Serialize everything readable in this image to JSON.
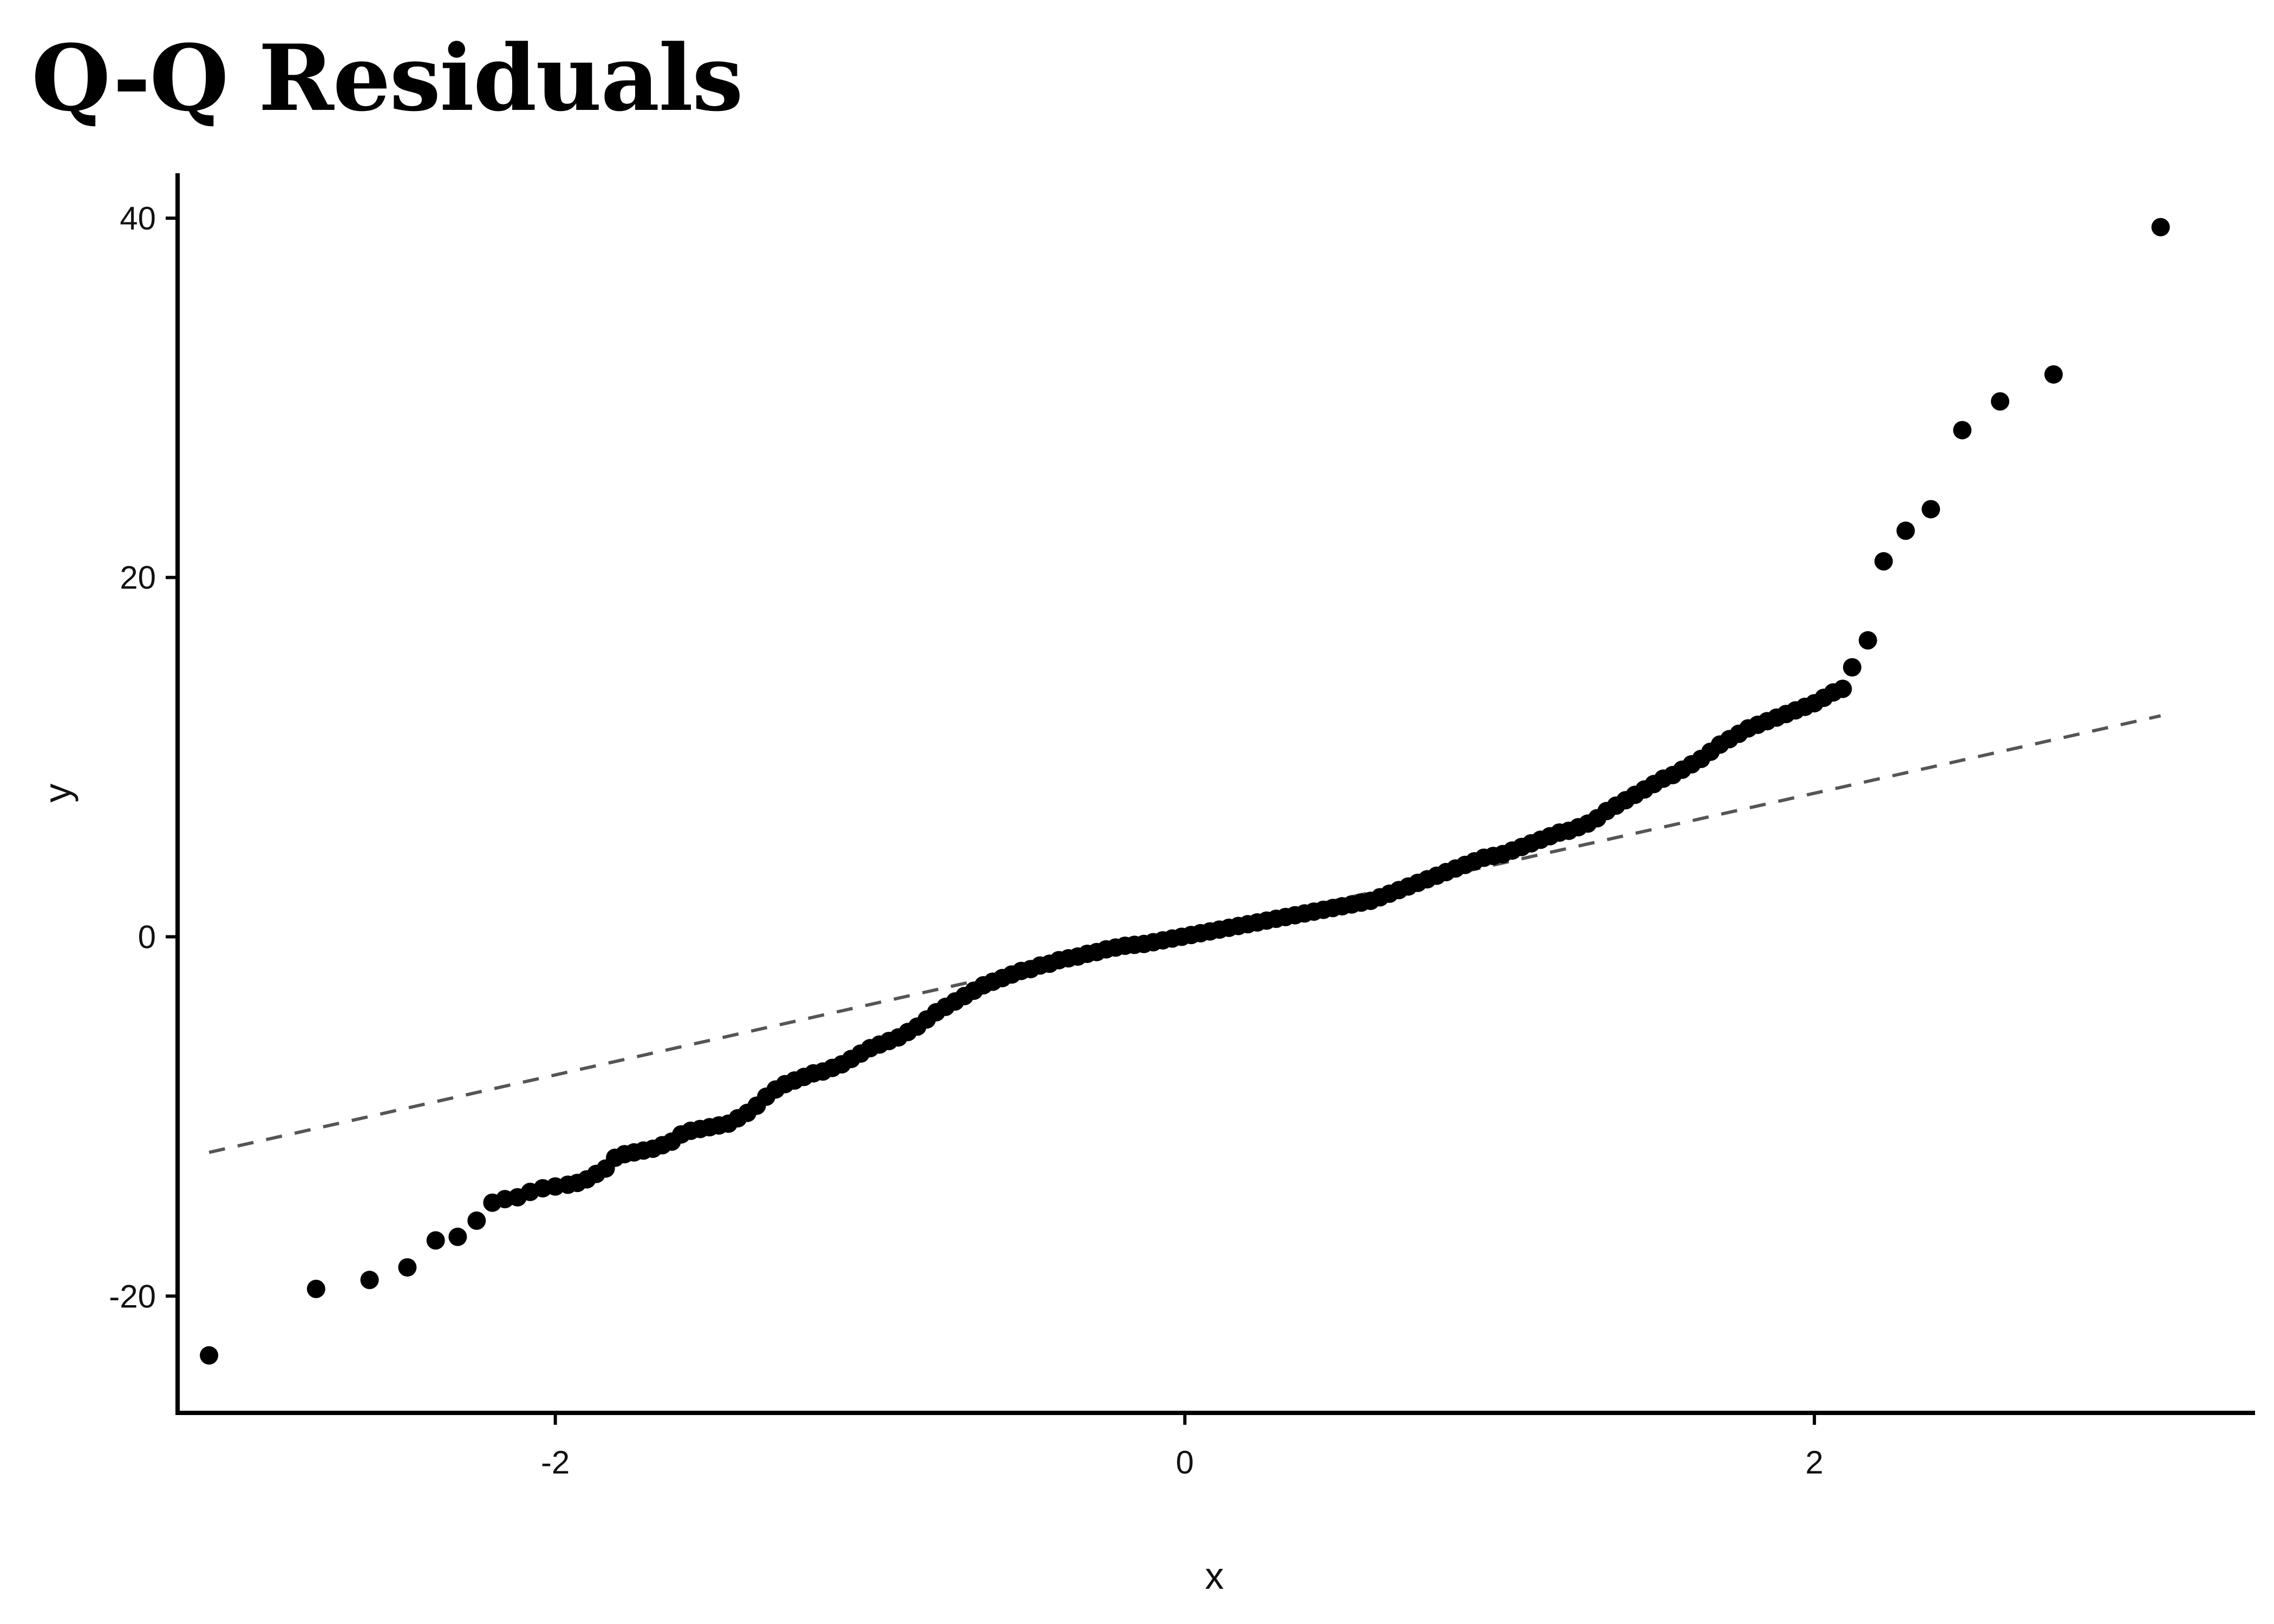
{
  "chart_data": {
    "type": "scatter",
    "title": "Q-Q Residuals",
    "xlabel": "x",
    "ylabel": "y",
    "xlim": [
      -3.2,
      3.4
    ],
    "ylim": [
      -26.5,
      42.5
    ],
    "x_ticks": [
      -2,
      0,
      2
    ],
    "y_ticks": [
      -20,
      0,
      20,
      40
    ],
    "grid": false,
    "legend": "none",
    "reference_line": {
      "style": "dashed",
      "color": "#555555",
      "x": [
        -3.1,
        3.1
      ],
      "y": [
        -12.0,
        12.3
      ]
    },
    "point_color": "#000000",
    "series": [
      {
        "points": [
          [
            -3.1,
            -23.3
          ],
          [
            -2.76,
            -19.6
          ],
          [
            -2.59,
            -19.1
          ],
          [
            -2.47,
            -18.4
          ],
          [
            -2.38,
            -16.9
          ],
          [
            -2.31,
            -16.7
          ],
          [
            -2.25,
            -15.8
          ],
          [
            -2.2,
            -14.8
          ],
          [
            -2.16,
            -14.6
          ],
          [
            -2.12,
            -14.5
          ],
          [
            -2.08,
            -14.2
          ],
          [
            -2.04,
            -14.0
          ],
          [
            -2.0,
            -13.9
          ],
          [
            -1.96,
            -13.8
          ],
          [
            -1.93,
            -13.7
          ],
          [
            -1.9,
            -13.5
          ],
          [
            -1.87,
            -13.2
          ],
          [
            -1.84,
            -12.9
          ],
          [
            -1.81,
            -12.3
          ],
          [
            -1.78,
            -12.1
          ],
          [
            -1.75,
            -12.0
          ],
          [
            -1.72,
            -11.9
          ],
          [
            -1.69,
            -11.8
          ],
          [
            -1.66,
            -11.6
          ],
          [
            -1.63,
            -11.4
          ],
          [
            -1.6,
            -11.0
          ],
          [
            -1.57,
            -10.8
          ],
          [
            -1.54,
            -10.7
          ],
          [
            -1.51,
            -10.6
          ],
          [
            -1.48,
            -10.5
          ],
          [
            -1.45,
            -10.4
          ],
          [
            -1.42,
            -10.1
          ],
          [
            -1.39,
            -9.8
          ],
          [
            -1.36,
            -9.4
          ],
          [
            -1.33,
            -8.9
          ],
          [
            -1.3,
            -8.5
          ],
          [
            -1.27,
            -8.2
          ],
          [
            -1.24,
            -8.0
          ],
          [
            -1.21,
            -7.8
          ],
          [
            -1.18,
            -7.6
          ],
          [
            -1.15,
            -7.5
          ],
          [
            -1.12,
            -7.3
          ],
          [
            -1.09,
            -7.1
          ],
          [
            -1.06,
            -6.8
          ],
          [
            -1.03,
            -6.5
          ],
          [
            -1.0,
            -6.2
          ],
          [
            -0.97,
            -6.0
          ],
          [
            -0.94,
            -5.8
          ],
          [
            -0.91,
            -5.6
          ],
          [
            -0.88,
            -5.3
          ],
          [
            -0.85,
            -5.0
          ],
          [
            -0.82,
            -4.6
          ],
          [
            -0.79,
            -4.2
          ],
          [
            -0.76,
            -3.9
          ],
          [
            -0.73,
            -3.6
          ],
          [
            -0.7,
            -3.3
          ],
          [
            -0.67,
            -3.0
          ],
          [
            -0.64,
            -2.7
          ],
          [
            -0.61,
            -2.5
          ],
          [
            -0.58,
            -2.3
          ],
          [
            -0.55,
            -2.1
          ],
          [
            -0.52,
            -1.9
          ],
          [
            -0.49,
            -1.8
          ],
          [
            -0.46,
            -1.6
          ],
          [
            -0.43,
            -1.5
          ],
          [
            -0.4,
            -1.3
          ],
          [
            -0.37,
            -1.2
          ],
          [
            -0.34,
            -1.1
          ],
          [
            -0.31,
            -0.95
          ],
          [
            -0.28,
            -0.85
          ],
          [
            -0.25,
            -0.7
          ],
          [
            -0.22,
            -0.6
          ],
          [
            -0.19,
            -0.5
          ],
          [
            -0.16,
            -0.45
          ],
          [
            -0.13,
            -0.4
          ],
          [
            -0.1,
            -0.3
          ],
          [
            -0.07,
            -0.2
          ],
          [
            -0.04,
            -0.1
          ],
          [
            -0.01,
            0.0
          ],
          [
            0.02,
            0.1
          ],
          [
            0.05,
            0.2
          ],
          [
            0.08,
            0.3
          ],
          [
            0.11,
            0.4
          ],
          [
            0.14,
            0.5
          ],
          [
            0.17,
            0.6
          ],
          [
            0.2,
            0.7
          ],
          [
            0.23,
            0.8
          ],
          [
            0.26,
            0.9
          ],
          [
            0.29,
            1.0
          ],
          [
            0.32,
            1.1
          ],
          [
            0.35,
            1.2
          ],
          [
            0.38,
            1.3
          ],
          [
            0.41,
            1.4
          ],
          [
            0.44,
            1.5
          ],
          [
            0.47,
            1.6
          ],
          [
            0.5,
            1.7
          ],
          [
            0.53,
            1.8
          ],
          [
            0.56,
            1.9
          ],
          [
            0.59,
            2.0
          ],
          [
            0.62,
            2.2
          ],
          [
            0.65,
            2.4
          ],
          [
            0.68,
            2.6
          ],
          [
            0.71,
            2.8
          ],
          [
            0.74,
            3.0
          ],
          [
            0.77,
            3.2
          ],
          [
            0.8,
            3.4
          ],
          [
            0.83,
            3.6
          ],
          [
            0.86,
            3.8
          ],
          [
            0.89,
            4.0
          ],
          [
            0.92,
            4.2
          ],
          [
            0.95,
            4.4
          ],
          [
            0.98,
            4.5
          ],
          [
            1.01,
            4.6
          ],
          [
            1.04,
            4.8
          ],
          [
            1.07,
            5.0
          ],
          [
            1.1,
            5.2
          ],
          [
            1.13,
            5.4
          ],
          [
            1.16,
            5.6
          ],
          [
            1.19,
            5.8
          ],
          [
            1.22,
            5.9
          ],
          [
            1.25,
            6.1
          ],
          [
            1.28,
            6.3
          ],
          [
            1.31,
            6.6
          ],
          [
            1.34,
            7.0
          ],
          [
            1.37,
            7.3
          ],
          [
            1.4,
            7.6
          ],
          [
            1.43,
            7.9
          ],
          [
            1.46,
            8.2
          ],
          [
            1.49,
            8.5
          ],
          [
            1.52,
            8.8
          ],
          [
            1.55,
            9.0
          ],
          [
            1.58,
            9.3
          ],
          [
            1.61,
            9.6
          ],
          [
            1.64,
            9.9
          ],
          [
            1.67,
            10.3
          ],
          [
            1.7,
            10.7
          ],
          [
            1.73,
            11.0
          ],
          [
            1.76,
            11.3
          ],
          [
            1.79,
            11.6
          ],
          [
            1.82,
            11.8
          ],
          [
            1.85,
            12.0
          ],
          [
            1.88,
            12.2
          ],
          [
            1.91,
            12.4
          ],
          [
            1.94,
            12.6
          ],
          [
            1.97,
            12.8
          ],
          [
            2.0,
            13.0
          ],
          [
            2.03,
            13.3
          ],
          [
            2.06,
            13.6
          ],
          [
            2.09,
            13.8
          ],
          [
            2.12,
            15.0
          ],
          [
            2.17,
            16.5
          ],
          [
            2.22,
            20.9
          ],
          [
            2.29,
            22.6
          ],
          [
            2.37,
            23.8
          ],
          [
            2.47,
            28.2
          ],
          [
            2.59,
            29.8
          ],
          [
            2.76,
            31.3
          ],
          [
            3.1,
            39.5
          ]
        ]
      }
    ]
  }
}
